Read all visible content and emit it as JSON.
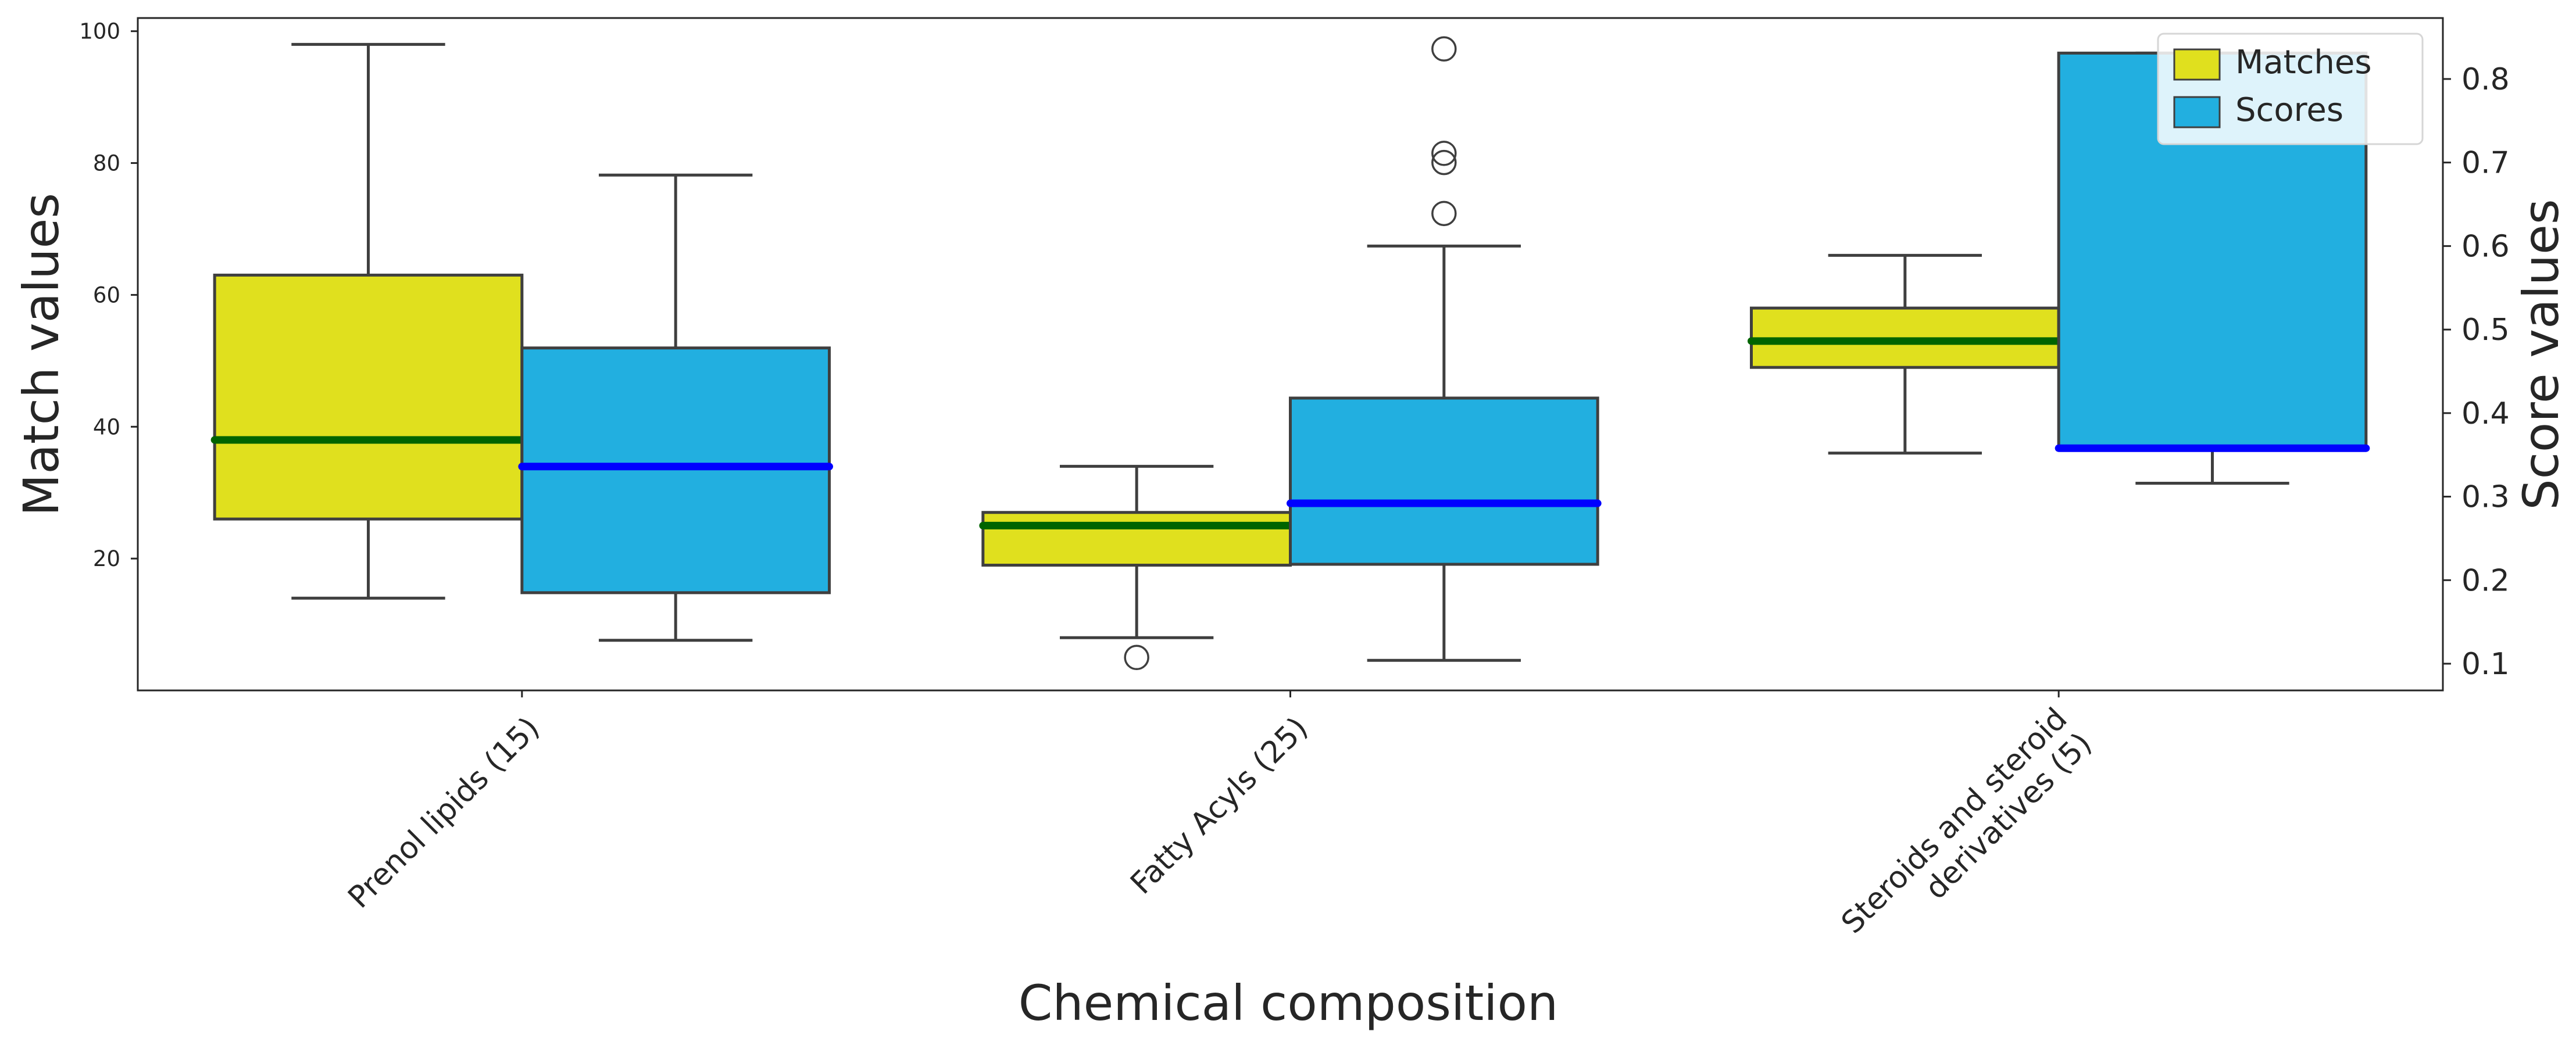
{
  "chart_data": {
    "type": "box",
    "xlabel": "Chemical composition",
    "ylabel_left": "Match values",
    "ylabel_right": "Score values",
    "categories": [
      {
        "line1": "Prenol lipids (15)",
        "line2": ""
      },
      {
        "line1": "Fatty Acyls (25)",
        "line2": ""
      },
      {
        "line1": "Steroids and steroid",
        "line2": "derivatives (5)"
      }
    ],
    "ylim_left": [
      0,
      102
    ],
    "yticks_left": [
      20,
      40,
      60,
      80,
      100
    ],
    "ylim_right": [
      0.068,
      0.873
    ],
    "yticks_right": [
      0.1,
      0.2,
      0.3,
      0.4,
      0.5,
      0.6,
      0.7,
      0.8
    ],
    "legend": {
      "position": "top-right",
      "entries": [
        "Matches",
        "Scores"
      ]
    },
    "series": [
      {
        "name": "Matches",
        "axis": "left",
        "fill": "#e0e01e",
        "median_color": "#006400",
        "boxes": [
          {
            "whislo": 14,
            "q1": 26,
            "med": 38,
            "q3": 63,
            "whishi": 98,
            "fliers": []
          },
          {
            "whislo": 8,
            "q1": 19,
            "med": 25,
            "q3": 27,
            "whishi": 34,
            "fliers": [
              5
            ]
          },
          {
            "whislo": 36,
            "q1": 49,
            "med": 53,
            "q3": 58,
            "whishi": 66,
            "fliers": []
          }
        ]
      },
      {
        "name": "Scores",
        "axis": "right",
        "fill": "#22afe0",
        "median_color": "#0000ff",
        "boxes": [
          {
            "whislo": 0.128,
            "q1": 0.185,
            "med": 0.336,
            "q3": 0.478,
            "whishi": 0.685,
            "fliers": []
          },
          {
            "whislo": 0.104,
            "q1": 0.219,
            "med": 0.292,
            "q3": 0.418,
            "whishi": 0.6,
            "fliers": [
              0.639,
              0.7,
              0.711,
              0.836
            ]
          },
          {
            "whislo": 0.316,
            "q1": 0.358,
            "med": 0.358,
            "q3": 0.831,
            "whishi": 0.831,
            "fliers": []
          }
        ]
      }
    ]
  }
}
